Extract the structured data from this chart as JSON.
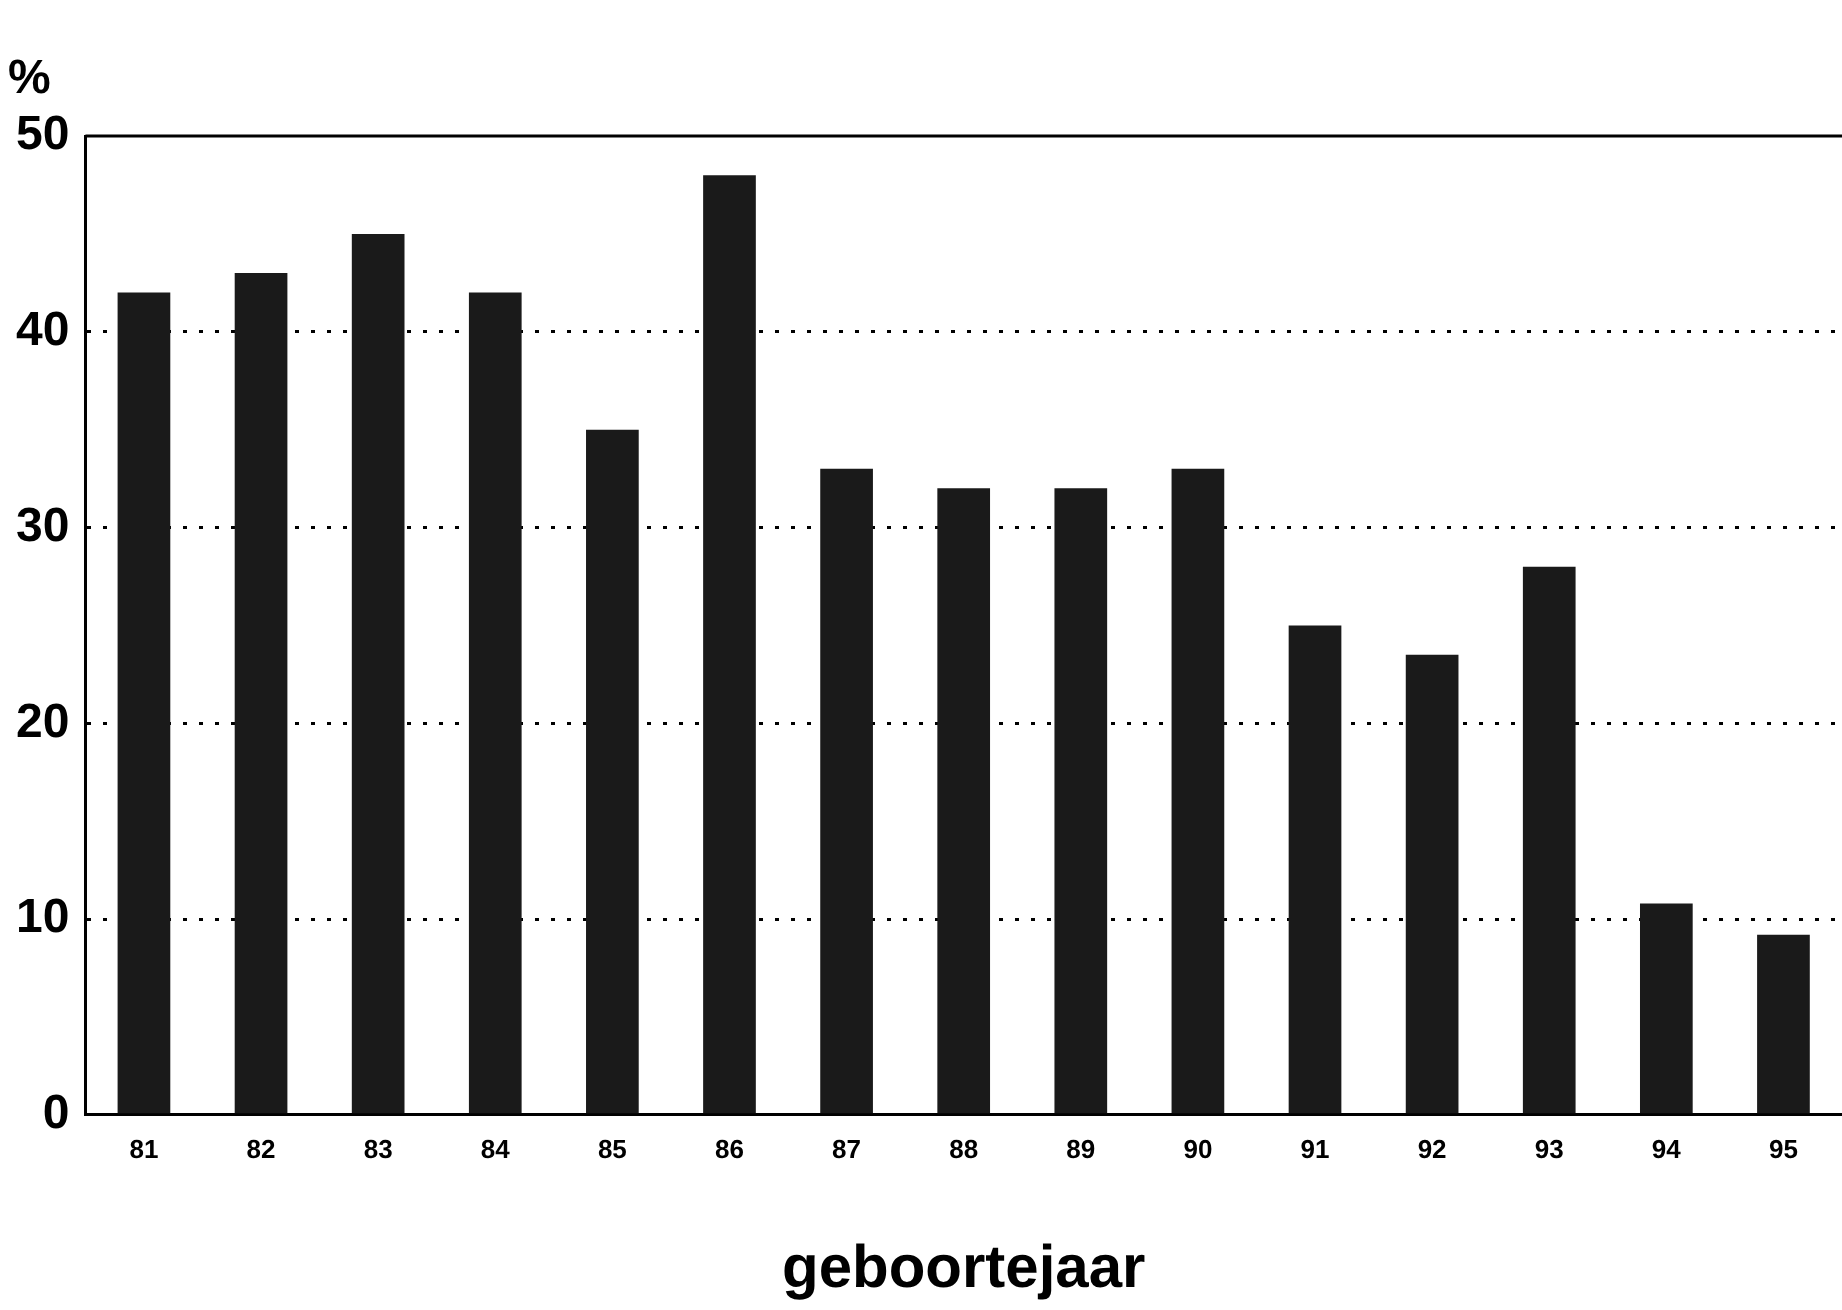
{
  "chart_data": {
    "type": "bar",
    "xlabel": "geboortejaar",
    "ylabel": "%",
    "categories": [
      "81",
      "82",
      "83",
      "84",
      "85",
      "86",
      "87",
      "88",
      "89",
      "90",
      "91",
      "92",
      "93",
      "94",
      "95"
    ],
    "values": [
      42,
      43,
      45,
      42,
      35,
      48,
      33,
      32,
      32,
      33,
      25,
      23.5,
      28,
      10.8,
      9.2
    ],
    "color": "#1a1a1a",
    "ylim": [
      0,
      50
    ],
    "yticks": [
      0,
      10,
      20,
      30,
      40,
      50
    ],
    "grid": "y",
    "legend": false
  }
}
